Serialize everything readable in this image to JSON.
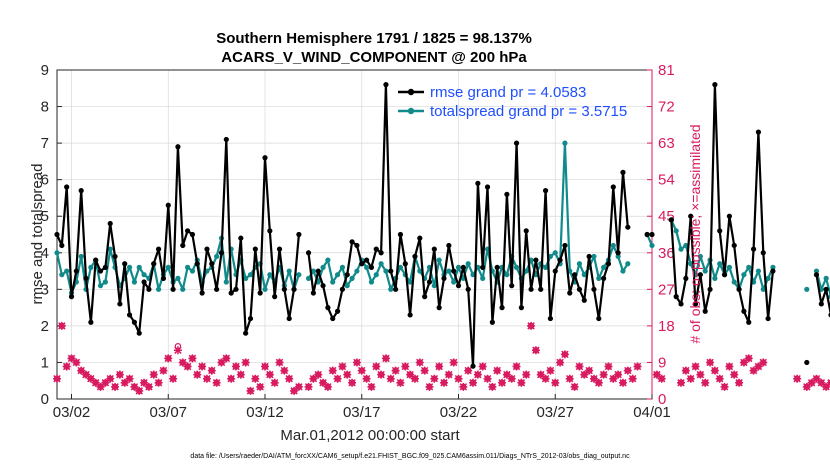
{
  "chart_data": {
    "type": "line",
    "title_line1": "Southern Hemisphere 1791 / 1825 = 98.137%",
    "title_line2": "ACARS_V_WIND_COMPONENT @ 200 hPa",
    "xlabel": "Mar.01,2012 00:00:00 start",
    "ylabel_left": "rmse and totalspread",
    "ylabel_right": "# of obs: o=possible; ×=assimilated",
    "footer": "data file: /Users/raeder/DAI/ATM_forcXX/CAM6_setup/f.e21.FHIST_BGC.f09_025.CAM6assim.011/Diags_NTrS_2012-03/obs_diag_output.nc",
    "x_tick_labels": [
      "03/02",
      "03/07",
      "03/12",
      "03/17",
      "03/22",
      "03/27",
      "04/01"
    ],
    "x_tick_days": [
      1,
      6,
      11,
      16,
      21,
      26,
      31
    ],
    "xlim_days": [
      0.25,
      31
    ],
    "ylim_left": [
      0,
      9
    ],
    "y_ticks_left": [
      "0",
      "1",
      "2",
      "3",
      "4",
      "5",
      "6",
      "7",
      "8",
      "9"
    ],
    "ylim_right": [
      0,
      81
    ],
    "y_ticks_right": [
      "0",
      "9",
      "18",
      "27",
      "36",
      "45",
      "54",
      "63",
      "72",
      "81"
    ],
    "colors": {
      "rmse": "#000000",
      "spread": "#108a8a",
      "obs": "#d81b60",
      "legend_text": "#1f4fff",
      "grid": "#d8d8d8"
    },
    "legend": [
      {
        "name": "rmse",
        "label": "rmse grand pr = 4.0583"
      },
      {
        "name": "spread",
        "label": "totalspread grand pr = 3.5715"
      }
    ],
    "series": [
      {
        "name": "rmse",
        "x_start_day": 0.25,
        "x_step_day": 0.25,
        "values": [
          4.5,
          4.2,
          5.8,
          2.8,
          3.5,
          5.7,
          3.3,
          2.1,
          3.8,
          3.5,
          3.6,
          4.8,
          3.9,
          2.6,
          3.7,
          2.3,
          2.1,
          1.8,
          3.2,
          3.0,
          3.7,
          4.1,
          3.3,
          5.3,
          3.0,
          6.9,
          4.2,
          4.6,
          4.5,
          3.7,
          2.9,
          4.1,
          3.7,
          3.0,
          4.0,
          7.1,
          2.9,
          3.0,
          4.4,
          1.8,
          2.2,
          4.1,
          2.9,
          6.6,
          4.6,
          2.8,
          4.1,
          3.0,
          2.2,
          3.0,
          4.5,
          null,
          4.0,
          2.9,
          3.5,
          3.1,
          2.5,
          2.2,
          2.4,
          3.0,
          3.4,
          4.3,
          4.2,
          3.7,
          3.8,
          3.6,
          4.1,
          4.0,
          8.6,
          3.5,
          3.0,
          4.5,
          3.7,
          2.3,
          3.9,
          4.4,
          2.8,
          3.2,
          4.1,
          2.5,
          3.3,
          4.2,
          3.5,
          3.1,
          3.6,
          3.0,
          0.9,
          5.9,
          3.6,
          5.8,
          2.1,
          3.6,
          2.5,
          5.6,
          3.1,
          7.0,
          2.5,
          4.6,
          3.0,
          3.8,
          3.0,
          5.7,
          2.2,
          3.5,
          3.8,
          4.2,
          2.9,
          3.4,
          3.0,
          2.7,
          3.9,
          3.0,
          2.2,
          3.3,
          3.7,
          5.8,
          4.0,
          6.2,
          4.7,
          null,
          null,
          null,
          4.5,
          4.5,
          null,
          null,
          null,
          4.9,
          2.8,
          2.6,
          3.3,
          5.0,
          2.6,
          3.4,
          2.4,
          3.0,
          8.6,
          4.6,
          3.4,
          5.0,
          4.2,
          3.0,
          2.4,
          2.1,
          4.1,
          7.3,
          4.0,
          2.2,
          3.5,
          null,
          null,
          null,
          null,
          null,
          null,
          1.0,
          null,
          3.4,
          2.6,
          3.0,
          2.3,
          2.7,
          4.0,
          null,
          null,
          null,
          6.0,
          3.2,
          3.7,
          3.3,
          3.9,
          3.2,
          null,
          null,
          3.7,
          3.5
        ]
      },
      {
        "name": "spread",
        "x_start_day": 0.25,
        "x_step_day": 0.25,
        "values": [
          4.0,
          3.4,
          3.5,
          2.9,
          3.2,
          3.9,
          3.0,
          3.6,
          3.8,
          3.1,
          3.2,
          4.1,
          3.6,
          3.1,
          3.3,
          3.6,
          3.2,
          3.6,
          3.4,
          3.3,
          3.7,
          3.0,
          3.4,
          3.6,
          3.2,
          3.3,
          3.0,
          3.6,
          3.5,
          3.8,
          3.2,
          3.5,
          3.6,
          3.9,
          4.4,
          3.2,
          4.1,
          3.4,
          3.8,
          3.3,
          3.4,
          3.6,
          3.7,
          3.0,
          3.4,
          3.2,
          3.6,
          3.1,
          3.5,
          3.0,
          3.4,
          null,
          3.3,
          3.5,
          3.2,
          3.6,
          3.8,
          3.2,
          3.4,
          3.6,
          3.1,
          3.3,
          3.5,
          3.8,
          3.6,
          3.2,
          3.4,
          3.7,
          3.5,
          3.0,
          3.3,
          3.6,
          3.4,
          3.2,
          3.9,
          3.5,
          3.3,
          3.6,
          3.1,
          3.8,
          3.4,
          3.5,
          3.2,
          3.6,
          3.3,
          3.7,
          3.4,
          3.6,
          3.3,
          4.1,
          3.5,
          3.2,
          3.6,
          3.4,
          3.9,
          3.6,
          3.3,
          3.5,
          3.8,
          3.4,
          3.7,
          3.6,
          3.9,
          4.0,
          3.7,
          7.0,
          3.5,
          3.2,
          3.7,
          3.4,
          3.6,
          3.9,
          3.3,
          3.6,
          3.8,
          4.2,
          3.9,
          3.5,
          3.7,
          null,
          null,
          null,
          4.5,
          4.2,
          null,
          null,
          null,
          4.9,
          4.6,
          4.1,
          4.2,
          3.7,
          3.4,
          3.9,
          3.5,
          3.8,
          3.3,
          3.7,
          3.4,
          3.6,
          3.2,
          3.0,
          3.4,
          3.6,
          3.2,
          3.5,
          3.0,
          3.3,
          3.6,
          null,
          null,
          null,
          null,
          null,
          null,
          3.0,
          null,
          3.5,
          3.0,
          3.3,
          2.8,
          3.1,
          3.6,
          null,
          null,
          null,
          3.8,
          3.4,
          3.6,
          3.2,
          3.4,
          3.1,
          null,
          null,
          3.5,
          3.3
        ]
      },
      {
        "name": "obs_possible",
        "x_start_day": 0.25,
        "x_step_day": 0.25,
        "values": [
          5,
          18,
          8,
          10,
          9,
          7,
          6,
          5,
          4,
          3,
          4,
          5,
          3,
          6,
          4,
          5,
          3,
          2,
          4,
          3,
          6,
          4,
          7,
          10,
          5,
          13,
          9,
          8,
          10,
          6,
          8,
          5,
          7,
          4,
          9,
          10,
          5,
          8,
          6,
          9,
          2,
          5,
          3,
          8,
          6,
          4,
          9,
          7,
          5,
          2,
          3,
          null,
          3,
          5,
          6,
          4,
          3,
          7,
          5,
          8,
          6,
          4,
          9,
          7,
          5,
          3,
          8,
          6,
          10,
          5,
          7,
          4,
          8,
          6,
          5,
          9,
          7,
          3,
          5,
          8,
          4,
          6,
          9,
          5,
          3,
          7,
          4,
          6,
          8,
          5,
          3,
          7,
          4,
          6,
          5,
          8,
          4,
          6,
          18,
          12,
          6,
          5,
          7,
          4,
          9,
          11,
          5,
          3,
          8,
          6,
          7,
          5,
          4,
          6,
          8,
          5,
          6,
          4,
          7,
          5,
          8,
          null,
          null,
          null,
          6,
          5,
          null,
          null,
          null,
          4,
          7,
          5,
          8,
          6,
          4,
          9,
          7,
          5,
          3,
          8,
          6,
          4,
          9,
          10,
          7,
          8,
          9,
          null,
          null,
          null,
          null,
          null,
          null,
          5,
          null,
          3,
          4,
          5,
          4,
          3,
          4,
          null,
          null,
          null,
          4,
          5,
          3,
          6,
          4,
          5,
          null,
          null,
          4,
          5
        ]
      },
      {
        "name": "obs_assimilated",
        "x_start_day": 0.25,
        "x_step_day": 0.25,
        "values": [
          5,
          18,
          8,
          10,
          9,
          7,
          6,
          5,
          4,
          3,
          4,
          5,
          3,
          6,
          4,
          5,
          3,
          2,
          4,
          3,
          6,
          4,
          7,
          10,
          5,
          12,
          9,
          8,
          10,
          6,
          8,
          5,
          7,
          4,
          9,
          10,
          5,
          8,
          6,
          9,
          2,
          5,
          3,
          8,
          6,
          4,
          9,
          7,
          5,
          2,
          3,
          null,
          3,
          5,
          6,
          4,
          3,
          7,
          5,
          8,
          6,
          4,
          9,
          7,
          5,
          3,
          8,
          6,
          10,
          5,
          7,
          4,
          8,
          6,
          5,
          9,
          7,
          3,
          5,
          8,
          4,
          6,
          9,
          5,
          3,
          7,
          4,
          6,
          8,
          5,
          3,
          7,
          4,
          6,
          5,
          8,
          4,
          6,
          18,
          12,
          6,
          5,
          7,
          4,
          9,
          11,
          5,
          3,
          8,
          6,
          7,
          5,
          4,
          6,
          8,
          5,
          6,
          4,
          7,
          5,
          8,
          null,
          null,
          null,
          6,
          5,
          null,
          null,
          null,
          4,
          7,
          5,
          8,
          6,
          4,
          9,
          7,
          5,
          3,
          8,
          6,
          4,
          9,
          10,
          7,
          8,
          9,
          null,
          null,
          null,
          null,
          null,
          null,
          5,
          null,
          3,
          4,
          5,
          4,
          3,
          4,
          null,
          null,
          null,
          4,
          5,
          3,
          6,
          4,
          5,
          null,
          null,
          4,
          5
        ]
      }
    ]
  }
}
